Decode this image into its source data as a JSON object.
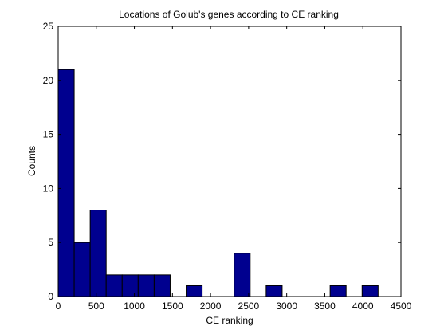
{
  "chart_data": {
    "type": "bar",
    "title": "Locations of Golub's genes according to CE ranking",
    "xlabel": "CE ranking",
    "ylabel": "Counts",
    "xlim": [
      0,
      4500
    ],
    "ylim": [
      0,
      25
    ],
    "x_ticks": [
      0,
      500,
      1000,
      1500,
      2000,
      2500,
      3000,
      3500,
      4000,
      4500
    ],
    "y_ticks": [
      0,
      5,
      10,
      15,
      20,
      25
    ],
    "bin_edges": [
      0,
      210,
      420,
      630,
      840,
      1050,
      1260,
      1470,
      1680,
      1890,
      2100,
      2310,
      2520,
      2730,
      2940,
      3150,
      3360,
      3570,
      3780,
      3990,
      4200
    ],
    "counts": [
      21,
      5,
      8,
      2,
      2,
      2,
      2,
      0,
      1,
      0,
      0,
      4,
      0,
      1,
      0,
      0,
      0,
      1,
      0,
      1
    ],
    "grid": false,
    "bar_color": "#00008f",
    "edge_color": "#000000"
  }
}
